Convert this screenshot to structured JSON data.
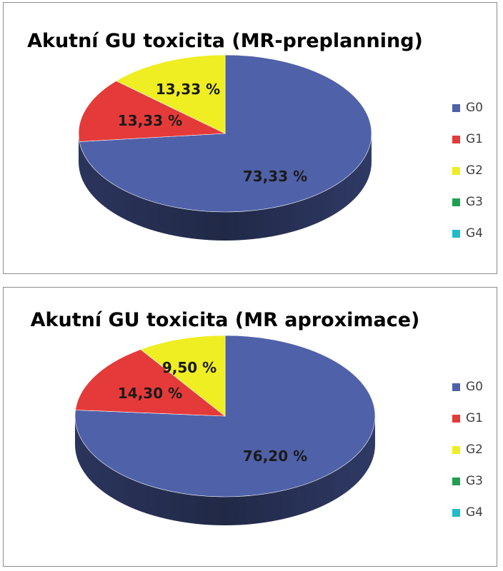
{
  "chart_data": [
    {
      "type": "pie",
      "title": "Akutní GU toxicita (MR-preplanning)",
      "categories": [
        "G0",
        "G1",
        "G2",
        "G3",
        "G4"
      ],
      "values": [
        73.33,
        13.33,
        13.33,
        0,
        0
      ],
      "data_labels": [
        "73,33 %",
        "13,33 %",
        "13,33 %",
        "",
        ""
      ],
      "colors": [
        "#4f61a8",
        "#e53a3a",
        "#eeee22",
        "#1fa050",
        "#1fbccc"
      ],
      "legend_position": "right"
    },
    {
      "type": "pie",
      "title": "Akutní GU toxicita (MR aproximace)",
      "categories": [
        "G0",
        "G1",
        "G2",
        "G3",
        "G4"
      ],
      "values": [
        76.2,
        14.3,
        9.5,
        0,
        0
      ],
      "data_labels": [
        "76,20 %",
        "14,30 %",
        "9,50 %",
        "",
        ""
      ],
      "colors": [
        "#4f61a8",
        "#e53a3a",
        "#eeee22",
        "#1fa050",
        "#1fbccc"
      ],
      "legend_position": "right"
    }
  ]
}
